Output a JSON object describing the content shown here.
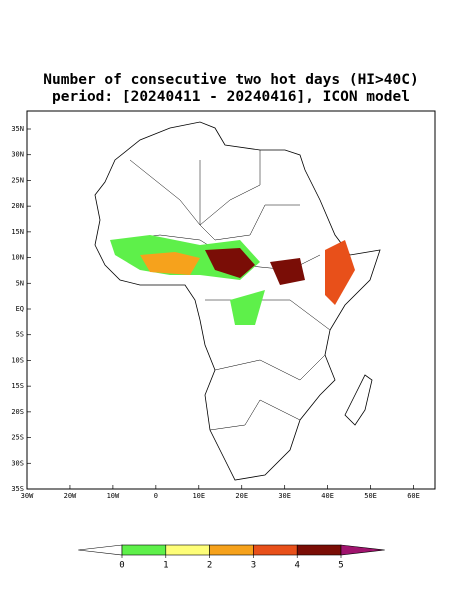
{
  "chart_data": {
    "type": "map",
    "title": "Number of consecutive two hot days (HI>40C)",
    "subtitle": "period: [20240411 - 20240416], ICON model",
    "xlim": [
      -30,
      65
    ],
    "ylim": [
      -35,
      38.5
    ],
    "yticks": [
      {
        "value": 35,
        "label": "35N"
      },
      {
        "value": 30,
        "label": "30N"
      },
      {
        "value": 25,
        "label": "25N"
      },
      {
        "value": 20,
        "label": "20N"
      },
      {
        "value": 15,
        "label": "15N"
      },
      {
        "value": 10,
        "label": "10N"
      },
      {
        "value": 5,
        "label": "5N"
      },
      {
        "value": 0,
        "label": "EQ"
      },
      {
        "value": -5,
        "label": "5S"
      },
      {
        "value": -10,
        "label": "10S"
      },
      {
        "value": -15,
        "label": "15S"
      },
      {
        "value": -20,
        "label": "20S"
      },
      {
        "value": -25,
        "label": "25S"
      },
      {
        "value": -30,
        "label": "30S"
      },
      {
        "value": -35,
        "label": "35S"
      }
    ],
    "xticks": [
      {
        "value": -30,
        "label": "30W"
      },
      {
        "value": -20,
        "label": "20W"
      },
      {
        "value": -10,
        "label": "10W"
      },
      0,
      {
        "value": 10,
        "label": "10E"
      },
      {
        "value": 20,
        "label": "20E"
      },
      {
        "value": 30,
        "label": "30E"
      },
      {
        "value": 40,
        "label": "40E"
      },
      {
        "value": 50,
        "label": "50E"
      },
      {
        "value": 60,
        "label": "60E"
      }
    ],
    "colorbar_ticks": [
      0,
      1,
      2,
      3,
      4,
      5
    ],
    "colorbar_colors": [
      "#ffffff",
      "#5ef04a",
      "#fefe78",
      "#f6a21c",
      "#e8501a",
      "#7a0d06",
      "#a0146e"
    ]
  }
}
